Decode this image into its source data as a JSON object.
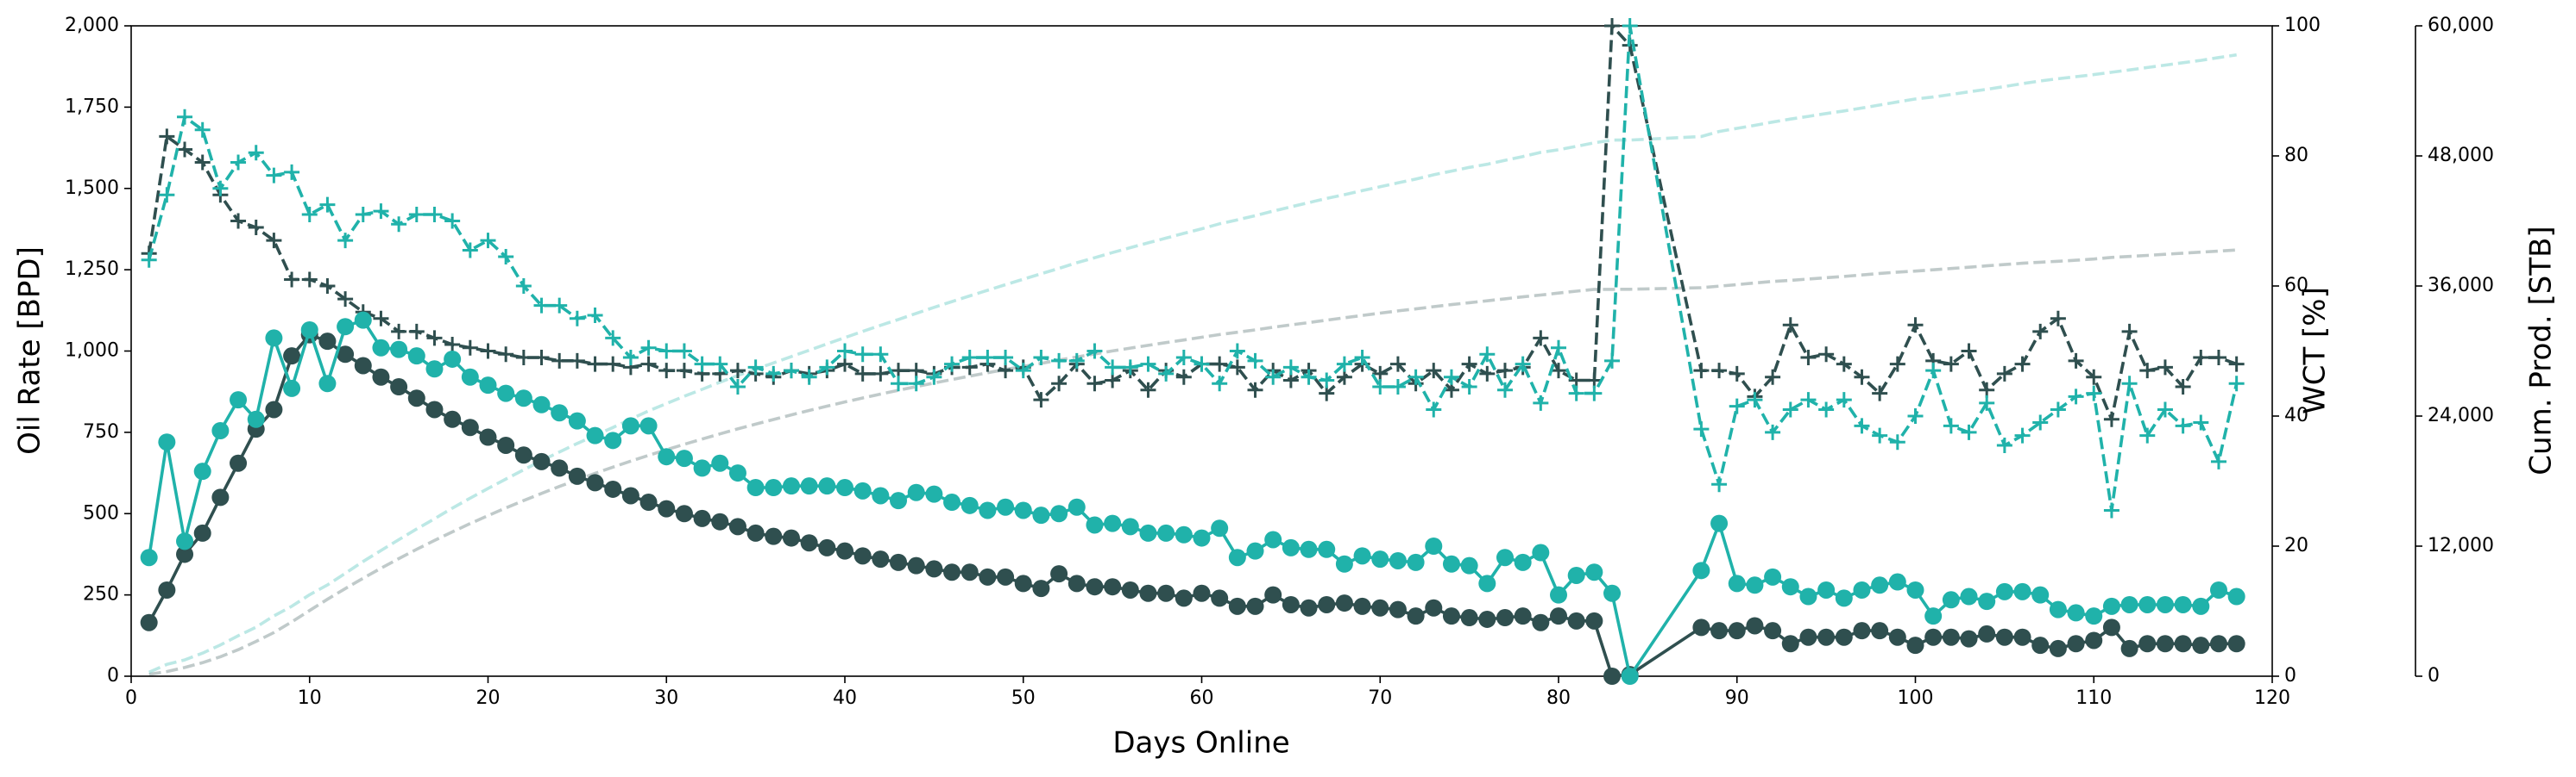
{
  "chart_data": {
    "type": "line",
    "xlabel": "Days Online",
    "ylabel": "Oil Rate [BPD]",
    "y2label": "WCT [%]",
    "y3label": "Cum. Prod. [STB]",
    "x": [
      1,
      2,
      3,
      4,
      5,
      6,
      7,
      8,
      9,
      10,
      11,
      12,
      13,
      14,
      15,
      16,
      17,
      18,
      19,
      20,
      21,
      22,
      23,
      24,
      25,
      26,
      27,
      28,
      29,
      30,
      31,
      32,
      33,
      34,
      35,
      36,
      37,
      38,
      39,
      40,
      41,
      42,
      43,
      44,
      45,
      46,
      47,
      48,
      49,
      50,
      51,
      52,
      53,
      54,
      55,
      56,
      57,
      58,
      59,
      60,
      61,
      62,
      63,
      64,
      65,
      66,
      67,
      68,
      69,
      70,
      71,
      72,
      73,
      74,
      75,
      76,
      77,
      78,
      79,
      80,
      81,
      82,
      83,
      84,
      88,
      89,
      90,
      91,
      92,
      93,
      94,
      95,
      96,
      97,
      98,
      99,
      100,
      101,
      102,
      103,
      104,
      105,
      106,
      107,
      108,
      109,
      110,
      111,
      112,
      113,
      114,
      115,
      116,
      117,
      118
    ],
    "xlim": [
      0,
      120
    ],
    "xticks": [
      0,
      10,
      20,
      30,
      40,
      50,
      60,
      70,
      80,
      90,
      100,
      110,
      120
    ],
    "ylim": [
      0,
      2000
    ],
    "yticks": [
      0,
      250,
      500,
      750,
      {
        "value": 1000,
        "label": "1,000"
      },
      {
        "value": 1250,
        "label": "1,250"
      },
      {
        "value": 1500,
        "label": "1,500"
      },
      {
        "value": 1750,
        "label": "1,750"
      },
      {
        "value": 2000,
        "label": "2,000"
      }
    ],
    "y2lim": [
      0,
      100
    ],
    "y2ticks": [
      0,
      20,
      40,
      60,
      80,
      100
    ],
    "y3lim": [
      0,
      60000
    ],
    "y3ticks": [
      0,
      {
        "value": 12000,
        "label": "12,000"
      },
      {
        "value": 24000,
        "label": "24,000"
      },
      {
        "value": 36000,
        "label": "36,000"
      },
      {
        "value": 48000,
        "label": "48,000"
      },
      {
        "value": 60000,
        "label": "60,000"
      }
    ],
    "series": [
      {
        "axis": "y3",
        "color": "#2f4f4f",
        "opacity": 0.3,
        "linestyle": "dashed",
        "marker": "none",
        "values": [
          165,
          430,
          805,
          1245,
          1795,
          2450,
          3210,
          4030,
          5015,
          6065,
          7095,
          8085,
          9040,
          9960,
          10850,
          11705,
          12525,
          13315,
          14080,
          14815,
          15525,
          16205,
          16865,
          17505,
          18120,
          18715,
          19290,
          19845,
          20380,
          20895,
          21395,
          21880,
          22355,
          22815,
          23255,
          23685,
          24110,
          24520,
          24915,
          25300,
          25670,
          26030,
          26380,
          26720,
          27050,
          27370,
          27690,
          27995,
          28300,
          28585,
          28855,
          29170,
          29455,
          29730,
          30005,
          30270,
          30525,
          30780,
          31020,
          31275,
          31515,
          31730,
          31945,
          32195,
          32415,
          32625,
          32845,
          33070,
          33285,
          33495,
          33700,
          33885,
          34095,
          34280,
          34460,
          34635,
          34815,
          35000,
          35165,
          35350,
          35520,
          35690,
          35690,
          35695,
          35845,
          35985,
          36125,
          36280,
          36420,
          36520,
          36640,
          36760,
          36880,
          37020,
          37160,
          37280,
          37375,
          37495,
          37615,
          37730,
          37860,
          37980,
          38100,
          38195,
          38280,
          38380,
          38490,
          38640,
          38725,
          38825,
          38925,
          39025,
          39120,
          39220,
          39320
        ]
      },
      {
        "axis": "y3",
        "color": "#20b2aa",
        "opacity": 0.3,
        "linestyle": "dashed",
        "marker": "none",
        "values": [
          365,
          1085,
          1500,
          2130,
          2885,
          3735,
          4525,
          5565,
          6450,
          7515,
          8415,
          9490,
          10585,
          11595,
          12600,
          13585,
          14530,
          15505,
          16425,
          17320,
          18190,
          19045,
          19880,
          20690,
          21475,
          22215,
          22940,
          23710,
          24480,
          25155,
          25825,
          26465,
          27120,
          27745,
          28325,
          28905,
          29490,
          30075,
          30660,
          31240,
          31810,
          32365,
          32905,
          33470,
          34030,
          34565,
          35090,
          35600,
          36120,
          36630,
          37125,
          37625,
          38145,
          38610,
          39080,
          39540,
          39980,
          40420,
          40855,
          41280,
          41735,
          42100,
          42485,
          42905,
          43300,
          43690,
          44080,
          44425,
          44795,
          45155,
          45510,
          45860,
          46260,
          46605,
          46945,
          47230,
          47595,
          47945,
          48325,
          48575,
          48885,
          49205,
          49460,
          49460,
          49785,
          50255,
          50540,
          50820,
          51125,
          51400,
          51645,
          51910,
          52150,
          52415,
          52695,
          52985,
          53250,
          53435,
          53670,
          53915,
          54145,
          54405,
          54665,
          54915,
          55120,
          55315,
          55500,
          55715,
          55935,
          56155,
          56375,
          56595,
          56810,
          57075,
          57320
        ]
      },
      {
        "axis": "y2",
        "color": "#2f4f4f",
        "opacity": 1,
        "linestyle": "dashed",
        "marker": "plus",
        "values": [
          65,
          83,
          81,
          79,
          74,
          70,
          69,
          67,
          61,
          61,
          60,
          58,
          56,
          55,
          53,
          53,
          52,
          51,
          50.5,
          50,
          49.5,
          49,
          49,
          48.5,
          48.5,
          48,
          48,
          47.5,
          48,
          47,
          47,
          46.5,
          46.5,
          47,
          46.5,
          46,
          47,
          46.5,
          47,
          48,
          46.5,
          46.5,
          47,
          47,
          46.5,
          47.5,
          47.5,
          48,
          47,
          47.5,
          42.5,
          45,
          48,
          45,
          45.5,
          47,
          44,
          47,
          46,
          48,
          48,
          47.5,
          44,
          47,
          45.5,
          47,
          43.5,
          46,
          48,
          46.5,
          48,
          45,
          47,
          44,
          48,
          46.5,
          47,
          47.5,
          52,
          47,
          45.5,
          45.5,
          100,
          97,
          47,
          47,
          46.5,
          43,
          46,
          54,
          49,
          49.5,
          48,
          46,
          43.5,
          48,
          54,
          48.5,
          48,
          50,
          44,
          46.5,
          48,
          53,
          55,
          48.5,
          46,
          39.5,
          53,
          47,
          47.5,
          44.5,
          49,
          49,
          48
        ]
      },
      {
        "axis": "y2",
        "color": "#20b2aa",
        "opacity": 1,
        "linestyle": "dashed",
        "marker": "plus",
        "values": [
          64,
          74,
          86,
          84,
          75,
          79,
          80.5,
          77,
          77.5,
          71,
          72.5,
          67,
          71,
          71.5,
          69.5,
          71,
          71,
          70,
          65.5,
          67,
          64.5,
          60,
          57,
          57,
          55,
          55.5,
          52,
          49,
          50.5,
          50,
          50,
          48,
          48,
          44.5,
          47.5,
          46.5,
          47,
          46,
          47.5,
          50,
          49.5,
          49.5,
          45,
          45,
          46,
          48,
          49,
          49,
          49,
          47,
          49,
          48.5,
          48.5,
          50,
          47.5,
          47.5,
          48,
          46.5,
          49,
          48,
          45,
          50,
          48.5,
          46,
          47.5,
          46,
          45.5,
          48,
          49,
          44.5,
          44.5,
          46,
          41,
          46,
          44.5,
          49.5,
          44,
          48,
          42,
          50.5,
          43.5,
          43.5,
          48.5,
          100,
          38,
          29.5,
          41.5,
          42.5,
          37.5,
          41,
          42.5,
          41,
          42.5,
          38.5,
          37,
          36,
          40,
          47,
          38.5,
          37.5,
          42,
          35.5,
          37,
          39,
          41,
          43,
          43.5,
          25.5,
          45,
          37,
          41,
          38.5,
          39,
          33,
          45
        ]
      },
      {
        "axis": "y",
        "color": "#2f4f4f",
        "opacity": 1,
        "linestyle": "solid",
        "marker": "circle",
        "values": [
          165,
          265,
          375,
          440,
          550,
          655,
          760,
          820,
          985,
          1050,
          1030,
          990,
          955,
          920,
          890,
          855,
          820,
          790,
          765,
          735,
          710,
          680,
          660,
          640,
          615,
          595,
          575,
          555,
          535,
          515,
          500,
          485,
          475,
          460,
          440,
          430,
          425,
          410,
          395,
          385,
          370,
          360,
          350,
          340,
          330,
          320,
          320,
          305,
          305,
          285,
          270,
          315,
          285,
          275,
          275,
          265,
          255,
          255,
          240,
          255,
          240,
          215,
          215,
          250,
          220,
          210,
          220,
          225,
          215,
          210,
          205,
          185,
          210,
          185,
          180,
          175,
          180,
          185,
          165,
          185,
          170,
          170,
          0,
          5,
          150,
          140,
          140,
          155,
          140,
          100,
          120,
          120,
          120,
          140,
          140,
          120,
          95,
          120,
          120,
          115,
          130,
          120,
          120,
          95,
          85,
          100,
          110,
          150,
          85,
          100,
          100,
          100,
          95,
          100,
          100
        ]
      },
      {
        "axis": "y",
        "color": "#20b2aa",
        "opacity": 1,
        "linestyle": "solid",
        "marker": "circle",
        "values": [
          365,
          720,
          415,
          630,
          755,
          850,
          790,
          1040,
          885,
          1065,
          900,
          1075,
          1095,
          1010,
          1005,
          985,
          945,
          975,
          920,
          895,
          870,
          855,
          835,
          810,
          785,
          740,
          725,
          770,
          770,
          675,
          670,
          640,
          655,
          625,
          580,
          580,
          585,
          585,
          585,
          580,
          570,
          555,
          540,
          565,
          560,
          535,
          525,
          510,
          520,
          510,
          495,
          500,
          520,
          465,
          470,
          460,
          440,
          440,
          435,
          425,
          455,
          365,
          385,
          420,
          395,
          390,
          390,
          345,
          370,
          360,
          355,
          350,
          400,
          345,
          340,
          285,
          365,
          350,
          380,
          250,
          310,
          320,
          255,
          0,
          325,
          470,
          285,
          280,
          305,
          275,
          245,
          265,
          240,
          265,
          280,
          290,
          265,
          185,
          235,
          245,
          230,
          260,
          260,
          250,
          205,
          195,
          185,
          215,
          220,
          220,
          220,
          220,
          215,
          265,
          245
        ]
      }
    ]
  }
}
